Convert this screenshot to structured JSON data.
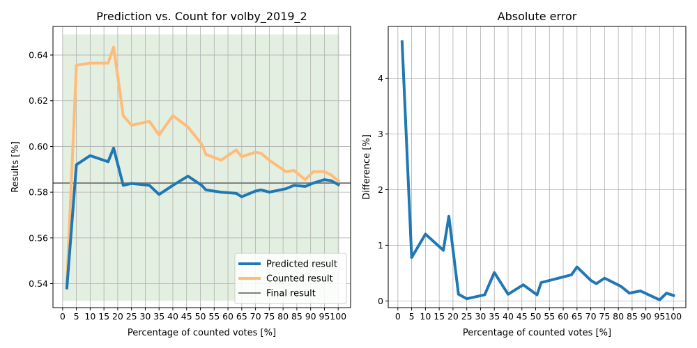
{
  "chart_data": [
    {
      "type": "line",
      "title": "Prediction vs. Count for volby_2019_2",
      "xlabel": "Percentage of counted votes [%]",
      "ylabel": "Results [%]",
      "xticks": [
        0,
        5,
        10,
        15,
        20,
        25,
        30,
        35,
        40,
        45,
        50,
        55,
        60,
        65,
        70,
        75,
        80,
        85,
        90,
        95,
        100
      ],
      "yticks": [
        0.54,
        0.56,
        0.58,
        0.6,
        0.62,
        0.64
      ],
      "ytick_labels": [
        "0.54",
        "0.56",
        "0.58",
        "0.60",
        "0.62",
        "0.64"
      ],
      "xlim": [
        -3.5,
        104.5
      ],
      "ylim": [
        0.5295,
        0.6525
      ],
      "shaded_band": [
        0.5325,
        0.649
      ],
      "grid": true,
      "legend_position": "lower-right",
      "x": [
        1.5,
        5,
        10,
        16.5,
        18.5,
        22,
        25,
        31.5,
        35,
        40,
        45.5,
        50.5,
        52,
        57.5,
        63,
        65,
        70,
        72,
        75,
        81,
        84,
        88,
        91,
        95,
        97.5,
        100.5
      ],
      "series": [
        {
          "name": "Predicted result",
          "color": "#1f77b4",
          "values": [
            0.5375,
            0.592,
            0.596,
            0.5933,
            0.5993,
            0.583,
            0.5838,
            0.583,
            0.579,
            0.583,
            0.587,
            0.583,
            0.581,
            0.58,
            0.5795,
            0.578,
            0.5805,
            0.581,
            0.58,
            0.5815,
            0.583,
            0.5825,
            0.584,
            0.5855,
            0.585,
            0.583
          ]
        },
        {
          "name": "Counted result",
          "color": "#ffbb78",
          "values": [
            0.5385,
            0.6355,
            0.6365,
            0.6365,
            0.6435,
            0.6135,
            0.6093,
            0.611,
            0.605,
            0.6135,
            0.6085,
            0.601,
            0.5965,
            0.594,
            0.5985,
            0.5955,
            0.5975,
            0.597,
            0.594,
            0.589,
            0.5895,
            0.5855,
            0.589,
            0.589,
            0.5875,
            0.5845
          ]
        }
      ],
      "hlines": [
        {
          "name": "Final result",
          "color": "#808080",
          "y": 0.584
        }
      ]
    },
    {
      "type": "line",
      "title": "Absolute error",
      "xlabel": "Percentage of counted votes [%]",
      "ylabel": "Difference [%]",
      "xticks": [
        0,
        5,
        10,
        15,
        20,
        25,
        30,
        35,
        40,
        45,
        50,
        55,
        60,
        65,
        70,
        75,
        80,
        85,
        90,
        95,
        100
      ],
      "yticks": [
        0,
        1,
        2,
        3,
        4
      ],
      "ytick_labels": [
        "0",
        "1",
        "2",
        "3",
        "4"
      ],
      "xlim": [
        -3.5,
        104.5
      ],
      "ylim": [
        -0.12,
        4.93
      ],
      "grid": true,
      "x": [
        1.5,
        5,
        10,
        16.5,
        18.5,
        22,
        25,
        31.5,
        35,
        40,
        45.5,
        50.5,
        52,
        57.5,
        63,
        65,
        70,
        72,
        75,
        81,
        84,
        88,
        91,
        95,
        97.5,
        100.5
      ],
      "series": [
        {
          "color": "#1f77b4",
          "values": [
            4.68,
            0.78,
            1.2,
            0.91,
            1.52,
            0.12,
            0.04,
            0.11,
            0.51,
            0.12,
            0.29,
            0.11,
            0.33,
            0.4,
            0.47,
            0.61,
            0.37,
            0.31,
            0.41,
            0.26,
            0.14,
            0.18,
            0.11,
            0.02,
            0.14,
            0.09
          ]
        }
      ]
    }
  ]
}
